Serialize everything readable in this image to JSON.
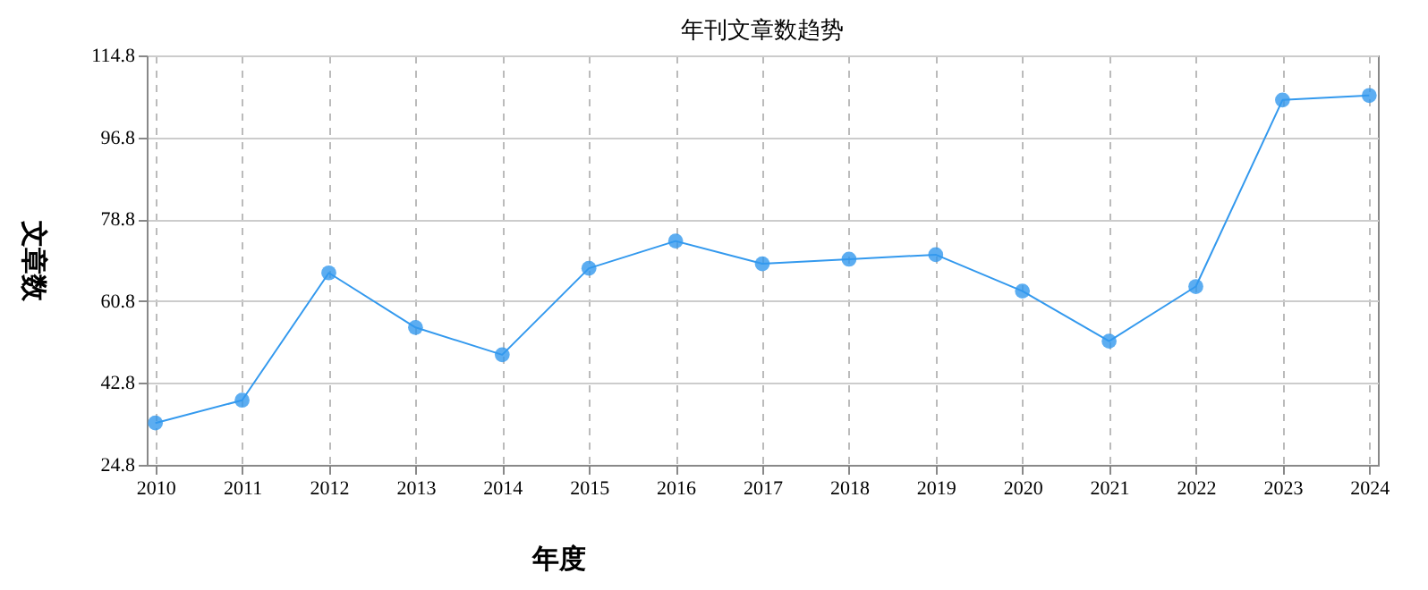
{
  "chart_data": {
    "type": "line",
    "title": "年刊文章数趋势",
    "xlabel": "年度",
    "ylabel": "文章数",
    "categories": [
      "2010",
      "2011",
      "2012",
      "2013",
      "2014",
      "2015",
      "2016",
      "2017",
      "2018",
      "2019",
      "2020",
      "2021",
      "2022",
      "2023",
      "2024"
    ],
    "series": [
      {
        "color": "#3399ee",
        "values": [
          34,
          39,
          67,
          55,
          49,
          68,
          74,
          69,
          70,
          71,
          63,
          52,
          64,
          105,
          106
        ]
      }
    ],
    "ylim": [
      24.8,
      114.8
    ],
    "yticks": [
      24.8,
      42.8,
      60.8,
      78.8,
      96.8,
      114.8
    ],
    "grid": true,
    "marker": "circle",
    "legend": false
  }
}
